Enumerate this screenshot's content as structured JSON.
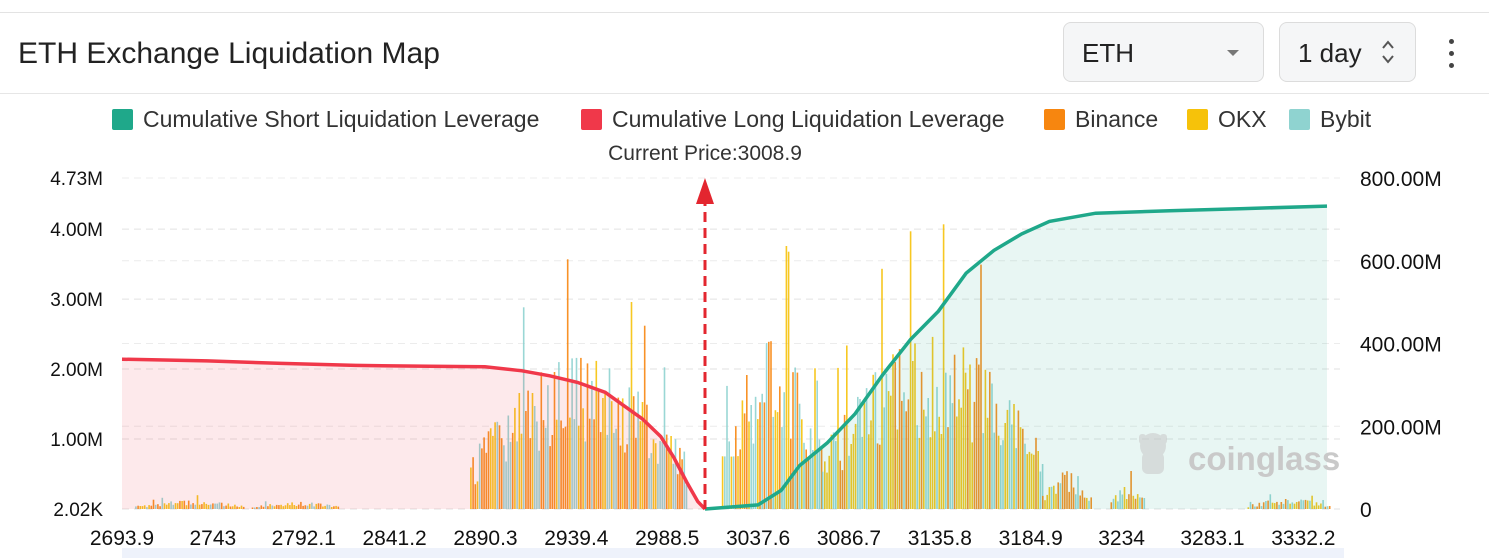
{
  "header": {
    "title": "ETH Exchange Liquidation Map",
    "coin_select": "ETH",
    "period_select": "1 day"
  },
  "watermark": "coinglass",
  "chart_data": {
    "type": "bar",
    "title": "",
    "current_price_label": "Current Price:3008.9",
    "current_price": 3008.9,
    "legend": [
      {
        "name": "Cumulative Short Liquidation Leverage",
        "color": "#1fa88a"
      },
      {
        "name": "Cumulative Long Liquidation Leverage",
        "color": "#f0384a"
      },
      {
        "name": "Binance",
        "color": "#f7860f"
      },
      {
        "name": "OKX",
        "color": "#f6c20a"
      },
      {
        "name": "Bybit",
        "color": "#8fd3d0"
      }
    ],
    "x_ticks": [
      "2693.9",
      "2743",
      "2792.1",
      "2841.2",
      "2890.3",
      "2939.4",
      "2988.5",
      "3037.6",
      "3086.7",
      "3135.8",
      "3184.9",
      "3234",
      "3283.1",
      "3332.2"
    ],
    "x_range": [
      2693.9,
      3352.0
    ],
    "left_axis": {
      "ticks": [
        "2.02K",
        "1.00M",
        "2.00M",
        "3.00M",
        "4.00M",
        "4.73M"
      ],
      "range": [
        0,
        4730000
      ]
    },
    "right_axis": {
      "ticks": [
        "0",
        "200.00M",
        "400.00M",
        "600.00M",
        "800.00M"
      ],
      "range": [
        0,
        800000000
      ]
    },
    "grid": true,
    "cumulative_long": [
      {
        "x": 2693.9,
        "y": 362000000
      },
      {
        "x": 2740,
        "y": 358000000
      },
      {
        "x": 2780,
        "y": 352000000
      },
      {
        "x": 2820,
        "y": 347000000
      },
      {
        "x": 2860,
        "y": 345000000
      },
      {
        "x": 2890,
        "y": 344000000
      },
      {
        "x": 2910,
        "y": 334000000
      },
      {
        "x": 2925,
        "y": 322000000
      },
      {
        "x": 2940,
        "y": 306000000
      },
      {
        "x": 2955,
        "y": 282000000
      },
      {
        "x": 2965,
        "y": 250000000
      },
      {
        "x": 2975,
        "y": 218000000
      },
      {
        "x": 2985,
        "y": 175000000
      },
      {
        "x": 2992,
        "y": 125000000
      },
      {
        "x": 2999,
        "y": 65000000
      },
      {
        "x": 3005,
        "y": 18000000
      },
      {
        "x": 3008.9,
        "y": 0
      }
    ],
    "cumulative_short": [
      {
        "x": 3008.9,
        "y": 0
      },
      {
        "x": 3037.6,
        "y": 10000000
      },
      {
        "x": 3050,
        "y": 45000000
      },
      {
        "x": 3060,
        "y": 105000000
      },
      {
        "x": 3075,
        "y": 160000000
      },
      {
        "x": 3090,
        "y": 230000000
      },
      {
        "x": 3105,
        "y": 325000000
      },
      {
        "x": 3120,
        "y": 410000000
      },
      {
        "x": 3135,
        "y": 478000000
      },
      {
        "x": 3150,
        "y": 570000000
      },
      {
        "x": 3165,
        "y": 625000000
      },
      {
        "x": 3180,
        "y": 665000000
      },
      {
        "x": 3195,
        "y": 695000000
      },
      {
        "x": 3220,
        "y": 715000000
      },
      {
        "x": 3260,
        "y": 721000000
      },
      {
        "x": 3300,
        "y": 726000000
      },
      {
        "x": 3345,
        "y": 732000000
      }
    ],
    "bar_clusters": [
      {
        "from": 2701,
        "to": 2760,
        "max": 200000
      },
      {
        "from": 2764,
        "to": 2811,
        "max": 170000
      },
      {
        "from": 2882,
        "to": 2999,
        "max": 3600000
      },
      {
        "from": 3018,
        "to": 3072,
        "max": 4000000
      },
      {
        "from": 3072,
        "to": 3191,
        "max": 4100000
      },
      {
        "from": 3191,
        "to": 3218,
        "max": 900000
      },
      {
        "from": 3228,
        "to": 3247,
        "max": 550000
      },
      {
        "from": 3302,
        "to": 3346,
        "max": 250000
      }
    ]
  }
}
